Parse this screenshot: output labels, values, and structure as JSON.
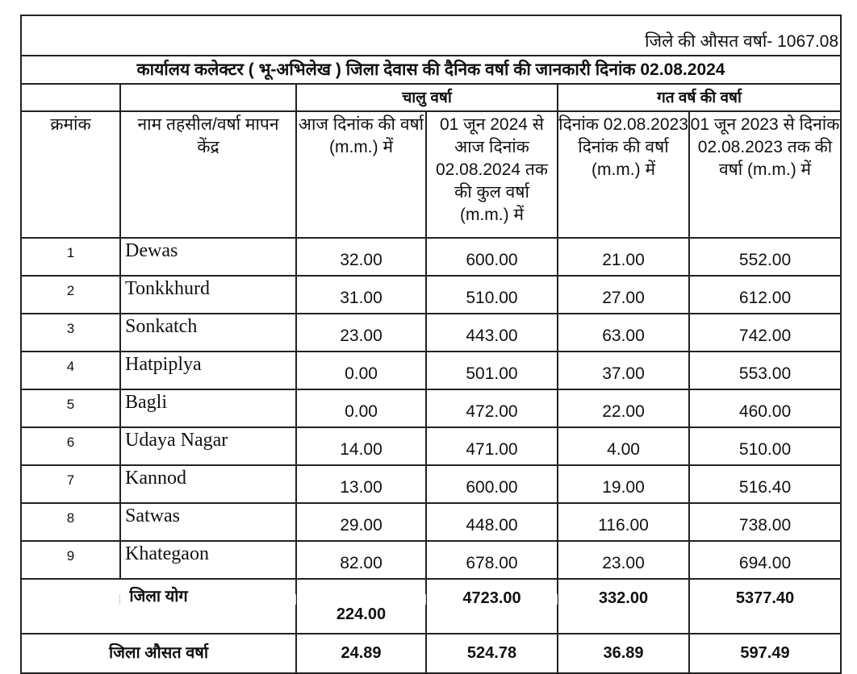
{
  "district_average_label": "जिले की औसत वर्षा- 1067.08",
  "title": "कार्यालय कलेक्टर ( भू-अभिलेख ) जिला देवास की दैनिक वर्षा की जानकारी दिनांक 02.08.2024",
  "groups": {
    "current": "चालु वर्षा",
    "previous": "गत वर्ष की वर्षा"
  },
  "headers": {
    "serial": "क्रमांक",
    "name": "नाम तहसील/वर्षा मापन केंद्र",
    "today": "आज दिनांक की वर्षा (m.m.) में",
    "cumulative_current": "01 जून 2024 से आज दिनांक 02.08.2024 तक की कुल वर्षा (m.m.) में",
    "lastyear_day": "दिनांक 02.08.2023 दिनांक की वर्षा (m.m.) में",
    "cumulative_lastyear": "01 जून 2023 से दिनांक 02.08.2023 तक की वर्षा (m.m.) में"
  },
  "rows": [
    {
      "sn": "1",
      "name": "Dewas",
      "today": "32.00",
      "cum": "600.00",
      "ly_day": "21.00",
      "ly_cum": "552.00"
    },
    {
      "sn": "2",
      "name": "Tonkkhurd",
      "today": "31.00",
      "cum": "510.00",
      "ly_day": "27.00",
      "ly_cum": "612.00"
    },
    {
      "sn": "3",
      "name": "Sonkatch",
      "today": "23.00",
      "cum": "443.00",
      "ly_day": "63.00",
      "ly_cum": "742.00"
    },
    {
      "sn": "4",
      "name": "Hatpiplya",
      "today": "0.00",
      "cum": "501.00",
      "ly_day": "37.00",
      "ly_cum": "553.00"
    },
    {
      "sn": "5",
      "name": "Bagli",
      "today": "0.00",
      "cum": "472.00",
      "ly_day": "22.00",
      "ly_cum": "460.00"
    },
    {
      "sn": "6",
      "name": "Udaya Nagar",
      "today": "14.00",
      "cum": "471.00",
      "ly_day": "4.00",
      "ly_cum": "510.00"
    },
    {
      "sn": "7",
      "name": "Kannod",
      "today": "13.00",
      "cum": "600.00",
      "ly_day": "19.00",
      "ly_cum": "516.40"
    },
    {
      "sn": "8",
      "name": "Satwas",
      "today": "29.00",
      "cum": "448.00",
      "ly_day": "116.00",
      "ly_cum": "738.00"
    },
    {
      "sn": "9",
      "name": "Khategaon",
      "today": "82.00",
      "cum": "678.00",
      "ly_day": "23.00",
      "ly_cum": "694.00"
    }
  ],
  "total": {
    "label": "जिला योग",
    "today": "224.00",
    "cum": "4723.00",
    "ly_day": "332.00",
    "ly_cum": "5377.40"
  },
  "average": {
    "label": "जिला औसत वर्षा",
    "today": "24.89",
    "cum": "524.78",
    "ly_day": "36.89",
    "ly_cum": "597.49"
  }
}
